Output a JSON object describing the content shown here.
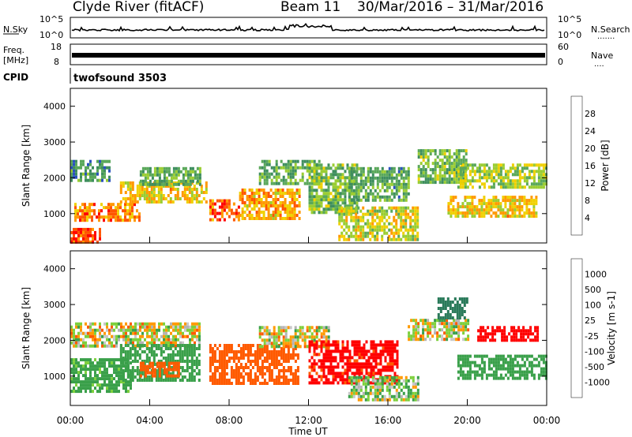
{
  "header": {
    "station": "Clyde River (fitACF)",
    "beam": "Beam 11",
    "date_range": "30/Mar/2016 – 31/Mar/2016"
  },
  "noise_panel": {
    "left_label": "N.Sky",
    "right_label": "N.Search",
    "right_dots": ".......",
    "left_ticks": [
      "10^5",
      "10^0"
    ],
    "right_ticks": [
      "10^5",
      "10^0"
    ]
  },
  "freq_panel": {
    "left_label_1": "Freq.",
    "left_label_2": "[MHz]",
    "right_label": "Nave",
    "right_dots": "....",
    "left_ticks": [
      "18",
      "8"
    ],
    "right_ticks": [
      "60",
      "0"
    ]
  },
  "cpid": {
    "label": "CPID",
    "value": "twofsound 3503"
  },
  "colors": {
    "power": [
      "#0000ff",
      "#2a52be",
      "#3e8e5e",
      "#5aa85a",
      "#9acd32",
      "#f0d000",
      "#ff9900",
      "#ff5500",
      "#ff0000"
    ],
    "velocity": [
      "#ff0000",
      "#ff5a00",
      "#ff9a00",
      "#c8c8c8",
      "#b4b4b4",
      "#7dd03c",
      "#3aa04a",
      "#2a7a5a",
      "#1e3cb4"
    ]
  },
  "chart_data": [
    {
      "type": "heatmap",
      "title": "Power",
      "ylabel": "Slant Range [km]",
      "colorbar_label": "Power [dB]",
      "colorbar_ticks": [
        "4",
        "8",
        "12",
        "16",
        "20",
        "24",
        "28"
      ],
      "colorbar_range": [
        0,
        32
      ],
      "x_range_hours": [
        0,
        24
      ],
      "ylim": [
        180,
        4500
      ],
      "y_ticks": [
        1000,
        2000,
        3000,
        4000
      ],
      "regions": [
        {
          "x": [
            0.0,
            1.5
          ],
          "y": [
            200,
            600
          ],
          "value": 28
        },
        {
          "x": [
            0.2,
            3.5
          ],
          "y": [
            800,
            1300
          ],
          "value": 24
        },
        {
          "x": [
            2.5,
            6.8
          ],
          "y": [
            1300,
            1900
          ],
          "value": 20
        },
        {
          "x": [
            0.0,
            2.0
          ],
          "y": [
            1900,
            2500
          ],
          "value": 10
        },
        {
          "x": [
            3.5,
            6.5
          ],
          "y": [
            1800,
            2300
          ],
          "value": 12
        },
        {
          "x": [
            7.0,
            8.5
          ],
          "y": [
            800,
            1400
          ],
          "value": 26
        },
        {
          "x": [
            8.5,
            11.5
          ],
          "y": [
            900,
            1700
          ],
          "value": 22
        },
        {
          "x": [
            9.5,
            12.5
          ],
          "y": [
            1800,
            2500
          ],
          "value": 12
        },
        {
          "x": [
            12.0,
            14.5
          ],
          "y": [
            1000,
            2400
          ],
          "value": 14
        },
        {
          "x": [
            13.5,
            17.5
          ],
          "y": [
            300,
            1200
          ],
          "value": 18
        },
        {
          "x": [
            14.0,
            17.0
          ],
          "y": [
            1400,
            2300
          ],
          "value": 12
        },
        {
          "x": [
            17.5,
            20.0
          ],
          "y": [
            1900,
            2800
          ],
          "value": 14
        },
        {
          "x": [
            19.5,
            24.0
          ],
          "y": [
            1700,
            2400
          ],
          "value": 16
        },
        {
          "x": [
            19.0,
            23.5
          ],
          "y": [
            900,
            1500
          ],
          "value": 20
        }
      ]
    },
    {
      "type": "heatmap",
      "title": "Velocity",
      "ylabel": "Slant Range [km]",
      "colorbar_label": "Velocity [m s-1]",
      "colorbar_ticks": [
        "-1000",
        "-500",
        "-100",
        "-25",
        "25",
        "100",
        "500",
        "1000"
      ],
      "x_range_hours": [
        0,
        24
      ],
      "ylim": [
        180,
        4500
      ],
      "y_ticks": [
        1000,
        2000,
        3000,
        4000
      ],
      "x_ticks": [
        "00:00",
        "04:00",
        "08:00",
        "12:00",
        "16:00",
        "20:00",
        "00:00"
      ],
      "xlabel": "Time UT",
      "regions": [
        {
          "x": [
            0.0,
            6.5
          ],
          "y": [
            1800,
            2500
          ],
          "value": 0
        },
        {
          "x": [
            0.0,
            3.0
          ],
          "y": [
            600,
            1500
          ],
          "value": 200
        },
        {
          "x": [
            2.5,
            6.5
          ],
          "y": [
            900,
            1900
          ],
          "value": 300
        },
        {
          "x": [
            3.5,
            5.5
          ],
          "y": [
            1000,
            1400
          ],
          "value": -300
        },
        {
          "x": [
            7.0,
            11.5
          ],
          "y": [
            800,
            1900
          ],
          "value": -300
        },
        {
          "x": [
            9.5,
            13.0
          ],
          "y": [
            1800,
            2400
          ],
          "value": 0
        },
        {
          "x": [
            12.0,
            16.5
          ],
          "y": [
            800,
            2000
          ],
          "value": -600
        },
        {
          "x": [
            14.0,
            17.5
          ],
          "y": [
            300,
            1000
          ],
          "value": 60
        },
        {
          "x": [
            17.0,
            20.0
          ],
          "y": [
            2000,
            2600
          ],
          "value": 0
        },
        {
          "x": [
            18.5,
            20.0
          ],
          "y": [
            2600,
            3200
          ],
          "value": 700
        },
        {
          "x": [
            20.5,
            23.5
          ],
          "y": [
            2000,
            2400
          ],
          "value": -800
        },
        {
          "x": [
            19.5,
            24.0
          ],
          "y": [
            900,
            1600
          ],
          "value": 300
        }
      ]
    }
  ]
}
